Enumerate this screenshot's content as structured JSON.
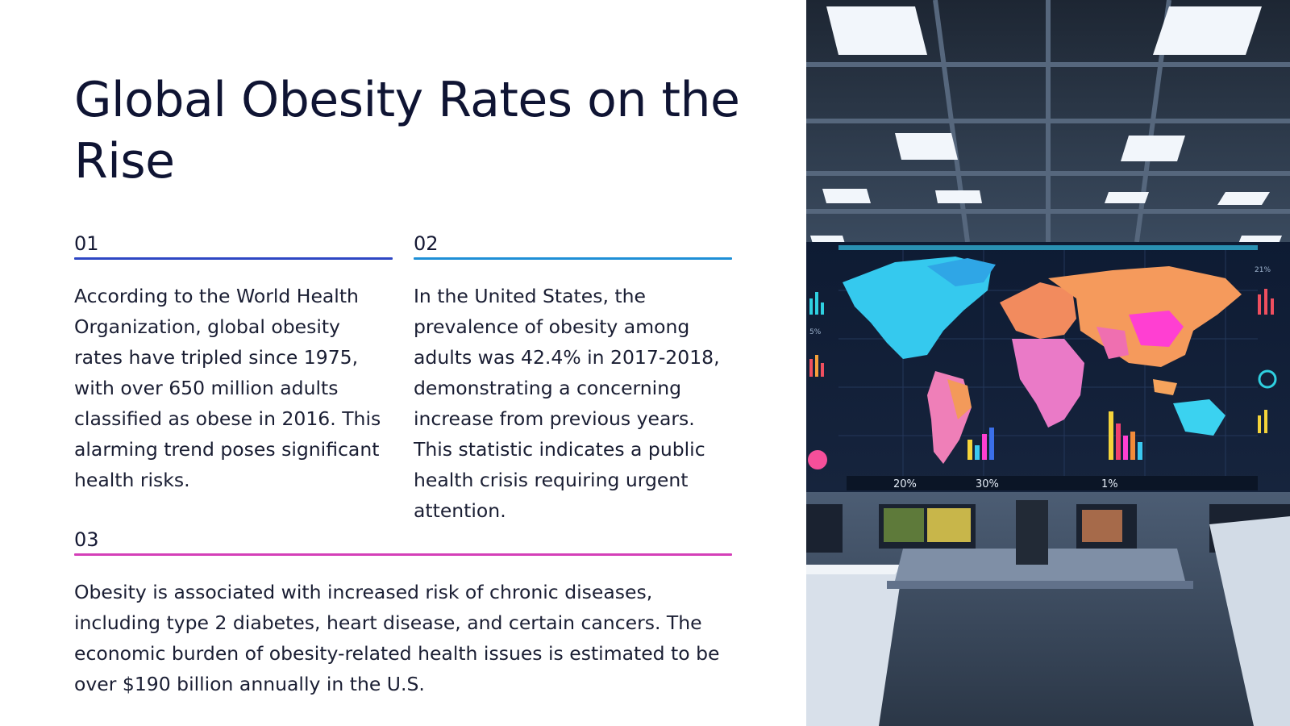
{
  "slide": {
    "title": "Global Obesity Rates on the Rise",
    "items": [
      {
        "number": "01",
        "rule_color": "#2e47c4",
        "text": "According to the World Health Organization, global obesity rates have tripled since 1975, with over 650 million adults classified as obese in 2016. This alarming trend poses significant health risks."
      },
      {
        "number": "02",
        "rule_color": "#1e8fd6",
        "text": "In the United States, the prevalence of obesity among adults was 42.4% in 2017-2018, demonstrating a concerning increase from previous years. This statistic indicates a public health crisis requiring urgent attention."
      },
      {
        "number": "03",
        "rule_color": "#d43fb8",
        "text": "Obesity is associated with increased risk of chronic diseases, including type 2 diabetes, heart disease, and certain cancers. The economic burden of obesity-related health issues is estimated to be over $190 billion annually in the U.S."
      }
    ]
  },
  "image": {
    "subject": "control room with a world map data dashboard",
    "screen_labels": [
      "20%",
      "30%",
      "1%",
      "5%",
      "21%"
    ]
  }
}
